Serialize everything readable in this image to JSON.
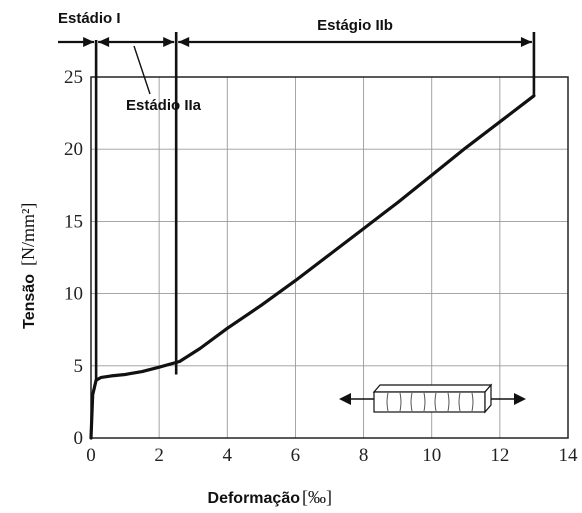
{
  "chart_data": {
    "type": "line",
    "xlabel": "Deformação",
    "xunit": "[‰]",
    "ylabel": "Tensão",
    "yunit": "[N/mm²]",
    "xlim": [
      0,
      14
    ],
    "ylim": [
      0,
      25
    ],
    "xticks": [
      0,
      2,
      4,
      6,
      8,
      10,
      12,
      14
    ],
    "yticks": [
      0,
      5,
      10,
      15,
      20,
      25
    ],
    "grid": true,
    "series": [
      {
        "x": [
          0,
          0.05,
          0.15,
          0.3,
          0.6,
          1.0,
          1.5,
          2.0,
          2.6,
          3.2,
          4.0,
          5.0,
          6.0,
          7.0,
          8.0,
          9.0,
          10.0,
          11.0,
          12.0,
          13.0
        ],
        "y": [
          0,
          3.0,
          4.0,
          4.2,
          4.3,
          4.4,
          4.6,
          4.9,
          5.3,
          6.2,
          7.6,
          9.2,
          10.9,
          12.7,
          14.5,
          16.3,
          18.2,
          20.1,
          21.9,
          23.7
        ]
      }
    ],
    "stages": [
      {
        "label": "Estádio I",
        "x_start": 0,
        "x_end": 0.15
      },
      {
        "label": "Estádio IIa",
        "x_start": 0.15,
        "x_end": 2.5
      },
      {
        "label": "Estágio IIb",
        "x_start": 2.5,
        "x_end": 13.0
      }
    ],
    "stage_lines": [
      0.15,
      2.5,
      13.0
    ]
  }
}
